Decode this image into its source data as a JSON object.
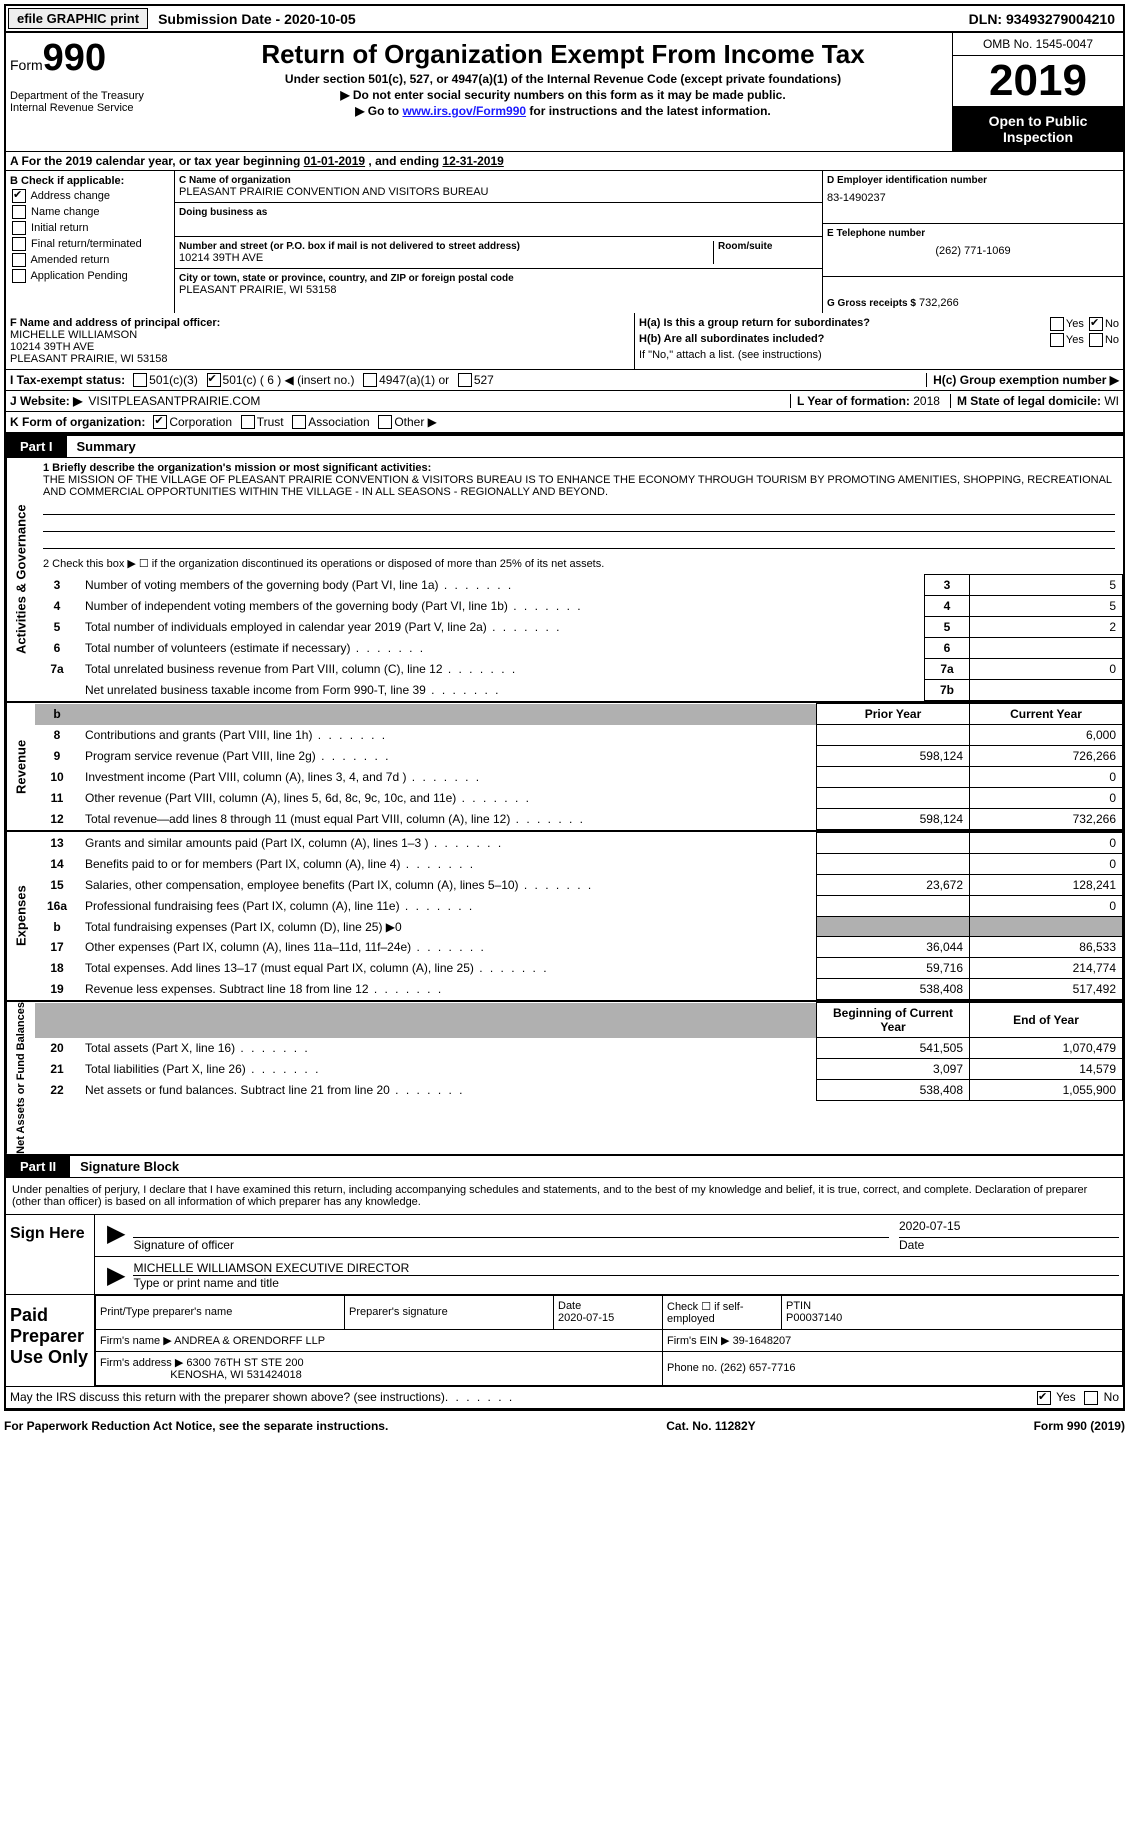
{
  "topbar": {
    "efile": "efile GRAPHIC print",
    "submission": "Submission Date - 2020-10-05",
    "dln": "DLN: 93493279004210"
  },
  "header": {
    "form_prefix": "Form",
    "form_num": "990",
    "dept": "Department of the Treasury\nInternal Revenue Service",
    "title": "Return of Organization Exempt From Income Tax",
    "sub1": "Under section 501(c), 527, or 4947(a)(1) of the Internal Revenue Code (except private foundations)",
    "sub2": "▶ Do not enter social security numbers on this form as it may be made public.",
    "sub3_pre": "▶ Go to ",
    "sub3_link": "www.irs.gov/Form990",
    "sub3_post": " for instructions and the latest information.",
    "omb": "OMB No. 1545-0047",
    "year": "2019",
    "open": "Open to Public Inspection"
  },
  "period": {
    "text_a": "A For the 2019 calendar year, or tax year beginning ",
    "begin": "01-01-2019",
    "mid": " , and ending ",
    "end": "12-31-2019"
  },
  "sectionB": {
    "title": "B Check if applicable:",
    "items": [
      {
        "label": "Address change",
        "checked": true
      },
      {
        "label": "Name change",
        "checked": false
      },
      {
        "label": "Initial return",
        "checked": false
      },
      {
        "label": "Final return/terminated",
        "checked": false
      },
      {
        "label": "Amended return",
        "checked": false
      },
      {
        "label": "Application Pending",
        "checked": false
      }
    ]
  },
  "sectionC": {
    "name_label": "C Name of organization",
    "name": "PLEASANT PRAIRIE CONVENTION AND VISITORS BUREAU",
    "dba_label": "Doing business as",
    "addr_label": "Number and street (or P.O. box if mail is not delivered to street address)",
    "room_label": "Room/suite",
    "addr": "10214 39TH AVE",
    "city_label": "City or town, state or province, country, and ZIP or foreign postal code",
    "city": "PLEASANT PRAIRIE, WI  53158"
  },
  "sectionD": {
    "label": "D Employer identification number",
    "value": "83-1490237"
  },
  "sectionE": {
    "label": "E Telephone number",
    "value": "(262) 771-1069"
  },
  "sectionG": {
    "label": "G Gross receipts $",
    "value": "732,266"
  },
  "sectionF": {
    "label": "F Name and address of principal officer:",
    "name": "MICHELLE WILLIAMSON",
    "addr1": "10214 39TH AVE",
    "addr2": "PLEASANT PRAIRIE, WI  53158"
  },
  "sectionH": {
    "a_label": "H(a)  Is this a group return for subordinates?",
    "a_yes": "Yes",
    "a_no": "No",
    "b_label": "H(b)  Are all subordinates included?",
    "b_note": "If \"No,\" attach a list. (see instructions)",
    "c_label": "H(c)  Group exemption number ▶"
  },
  "sectionI": {
    "label": "I  Tax-exempt status:",
    "opt1": "501(c)(3)",
    "opt2": "501(c) ( 6 ) ◀ (insert no.)",
    "opt3": "4947(a)(1) or",
    "opt4": "527"
  },
  "sectionJ": {
    "label": "J  Website: ▶",
    "value": "VISITPLEASANTPRAIRIE.COM"
  },
  "sectionK": {
    "label": "K Form of organization:",
    "corp": "Corporation",
    "trust": "Trust",
    "assoc": "Association",
    "other": "Other ▶"
  },
  "sectionL": {
    "label": "L Year of formation:",
    "value": "2018"
  },
  "sectionM": {
    "label": "M State of legal domicile:",
    "value": "WI"
  },
  "part1": {
    "tab": "Part I",
    "title": "Summary",
    "side_gov": "Activities & Governance",
    "side_rev": "Revenue",
    "side_exp": "Expenses",
    "side_net": "Net Assets or Fund Balances",
    "line1_label": "1  Briefly describe the organization's mission or most significant activities:",
    "mission": "THE MISSION OF THE VILLAGE OF PLEASANT PRAIRIE CONVENTION & VISITORS BUREAU IS TO ENHANCE THE ECONOMY THROUGH TOURISM BY PROMOTING AMENITIES, SHOPPING, RECREATIONAL AND COMMERCIAL OPPORTUNITIES WITHIN THE VILLAGE - IN ALL SEASONS - REGIONALLY AND BEYOND.",
    "line2": "2   Check this box ▶ ☐  if the organization discontinued its operations or disposed of more than 25% of its net assets.",
    "gov_rows": [
      {
        "n": "3",
        "desc": "Number of voting members of the governing body (Part VI, line 1a)",
        "code": "3",
        "val": "5"
      },
      {
        "n": "4",
        "desc": "Number of independent voting members of the governing body (Part VI, line 1b)",
        "code": "4",
        "val": "5"
      },
      {
        "n": "5",
        "desc": "Total number of individuals employed in calendar year 2019 (Part V, line 2a)",
        "code": "5",
        "val": "2"
      },
      {
        "n": "6",
        "desc": "Total number of volunteers (estimate if necessary)",
        "code": "6",
        "val": ""
      },
      {
        "n": "7a",
        "desc": "Total unrelated business revenue from Part VIII, column (C), line 12",
        "code": "7a",
        "val": "0"
      },
      {
        "n": "",
        "desc": "Net unrelated business taxable income from Form 990-T, line 39",
        "code": "7b",
        "val": ""
      }
    ],
    "col_prior": "Prior Year",
    "col_current": "Current Year",
    "rev_rows": [
      {
        "n": "8",
        "desc": "Contributions and grants (Part VIII, line 1h)",
        "prior": "",
        "cur": "6,000"
      },
      {
        "n": "9",
        "desc": "Program service revenue (Part VIII, line 2g)",
        "prior": "598,124",
        "cur": "726,266"
      },
      {
        "n": "10",
        "desc": "Investment income (Part VIII, column (A), lines 3, 4, and 7d )",
        "prior": "",
        "cur": "0"
      },
      {
        "n": "11",
        "desc": "Other revenue (Part VIII, column (A), lines 5, 6d, 8c, 9c, 10c, and 11e)",
        "prior": "",
        "cur": "0"
      },
      {
        "n": "12",
        "desc": "Total revenue—add lines 8 through 11 (must equal Part VIII, column (A), line 12)",
        "prior": "598,124",
        "cur": "732,266"
      }
    ],
    "exp_rows": [
      {
        "n": "13",
        "desc": "Grants and similar amounts paid (Part IX, column (A), lines 1–3 )",
        "prior": "",
        "cur": "0"
      },
      {
        "n": "14",
        "desc": "Benefits paid to or for members (Part IX, column (A), line 4)",
        "prior": "",
        "cur": "0"
      },
      {
        "n": "15",
        "desc": "Salaries, other compensation, employee benefits (Part IX, column (A), lines 5–10)",
        "prior": "23,672",
        "cur": "128,241"
      },
      {
        "n": "16a",
        "desc": "Professional fundraising fees (Part IX, column (A), line 11e)",
        "prior": "",
        "cur": "0"
      },
      {
        "n": "b",
        "desc": "Total fundraising expenses (Part IX, column (D), line 25) ▶0",
        "prior": "GREY",
        "cur": "GREY"
      },
      {
        "n": "17",
        "desc": "Other expenses (Part IX, column (A), lines 11a–11d, 11f–24e)",
        "prior": "36,044",
        "cur": "86,533"
      },
      {
        "n": "18",
        "desc": "Total expenses. Add lines 13–17 (must equal Part IX, column (A), line 25)",
        "prior": "59,716",
        "cur": "214,774"
      },
      {
        "n": "19",
        "desc": "Revenue less expenses. Subtract line 18 from line 12",
        "prior": "538,408",
        "cur": "517,492"
      }
    ],
    "col_begin": "Beginning of Current Year",
    "col_end": "End of Year",
    "net_rows": [
      {
        "n": "20",
        "desc": "Total assets (Part X, line 16)",
        "prior": "541,505",
        "cur": "1,070,479"
      },
      {
        "n": "21",
        "desc": "Total liabilities (Part X, line 26)",
        "prior": "3,097",
        "cur": "14,579"
      },
      {
        "n": "22",
        "desc": "Net assets or fund balances. Subtract line 21 from line 20",
        "prior": "538,408",
        "cur": "1,055,900"
      }
    ]
  },
  "part2": {
    "tab": "Part II",
    "title": "Signature Block",
    "perjury": "Under penalties of perjury, I declare that I have examined this return, including accompanying schedules and statements, and to the best of my knowledge and belief, it is true, correct, and complete. Declaration of preparer (other than officer) is based on all information of which preparer has any knowledge.",
    "sign_here": "Sign Here",
    "sig_officer": "Signature of officer",
    "sig_date": "2020-07-15",
    "date_lbl": "Date",
    "officer_name": "MICHELLE WILLIAMSON  EXECUTIVE DIRECTOR",
    "officer_type": "Type or print name and title",
    "paid_prep": "Paid Preparer Use Only",
    "prep_name_lbl": "Print/Type preparer's name",
    "prep_sig_lbl": "Preparer's signature",
    "prep_date_lbl": "Date",
    "prep_date": "2020-07-15",
    "check_self": "Check ☐ if self-employed",
    "ptin_lbl": "PTIN",
    "ptin": "P00037140",
    "firm_name_lbl": "Firm's name   ▶",
    "firm_name": "ANDREA & ORENDORFF LLP",
    "firm_ein_lbl": "Firm's EIN ▶",
    "firm_ein": "39-1648207",
    "firm_addr_lbl": "Firm's address ▶",
    "firm_addr": "6300 76TH ST STE 200",
    "firm_city": "KENOSHA, WI  531424018",
    "phone_lbl": "Phone no.",
    "phone": "(262) 657-7716",
    "discuss": "May the IRS discuss this return with the preparer shown above? (see instructions)",
    "yes": "Yes",
    "no": "No"
  },
  "footer": {
    "left": "For Paperwork Reduction Act Notice, see the separate instructions.",
    "mid": "Cat. No. 11282Y",
    "right": "Form 990 (2019)"
  }
}
